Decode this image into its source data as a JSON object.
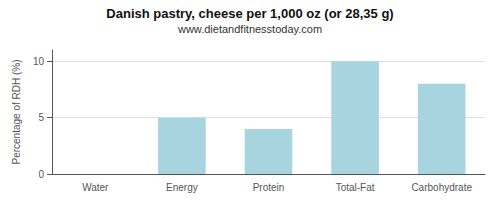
{
  "chart_data": {
    "type": "bar",
    "title": "Danish pastry, cheese per 1,000 oz (or 28,35 g)",
    "subtitle": "www.dietandfitnesstoday.com",
    "categories": [
      "Water",
      "Energy",
      "Protein",
      "Total-Fat",
      "Carbohydrate"
    ],
    "values": [
      0,
      5,
      4,
      10,
      8
    ],
    "color": "#a8d4e0",
    "ylabel": "Percentage of RDH (%)",
    "ylim": [
      0,
      11
    ],
    "yticks": [
      0,
      5,
      10
    ],
    "grid": true
  }
}
